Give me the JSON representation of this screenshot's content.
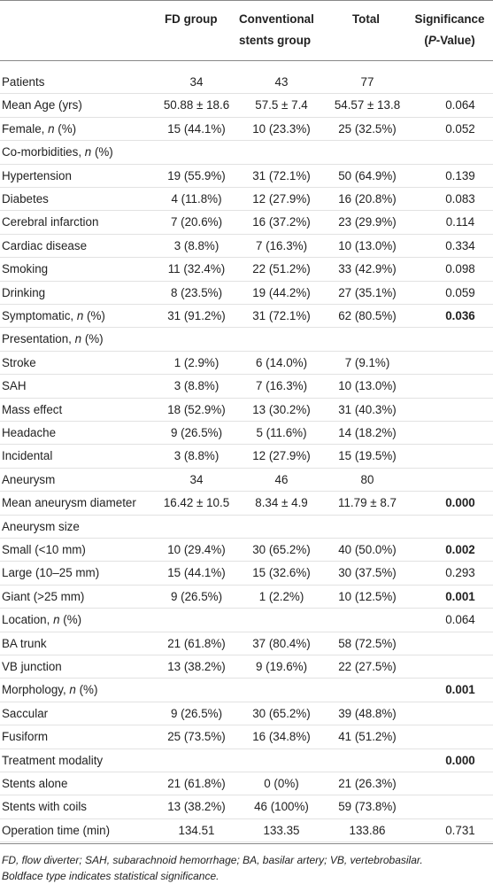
{
  "table": {
    "header": [
      "FD group",
      "Conventional stents group",
      "Total",
      "Significance (P-Value)"
    ],
    "rows": [
      [
        "Patients",
        "34",
        "43",
        "77",
        null
      ],
      [
        "Mean Age (yrs)",
        "50.88 ± 18.6",
        "57.5 ± 7.4",
        "54.57 ± 13.8",
        "0.064"
      ],
      [
        "Female, n (%)",
        "15 (44.1%)",
        "10 (23.3%)",
        "25 (32.5%)",
        "0.052"
      ],
      [
        "Co-morbidities, n (%)",
        null,
        null,
        null,
        null
      ],
      [
        "Hypertension",
        "19 (55.9%)",
        "31 (72.1%)",
        "50 (64.9%)",
        "0.139"
      ],
      [
        "Diabetes",
        "4 (11.8%)",
        "12 (27.9%)",
        "16 (20.8%)",
        "0.083"
      ],
      [
        "Cerebral infarction",
        "7 (20.6%)",
        "16 (37.2%)",
        "23 (29.9%)",
        "0.114"
      ],
      [
        "Cardiac disease",
        "3 (8.8%)",
        "7 (16.3%)",
        "10 (13.0%)",
        "0.334"
      ],
      [
        "Smoking",
        "11 (32.4%)",
        "22 (51.2%)",
        "33 (42.9%)",
        "0.098"
      ],
      [
        "Drinking",
        "8 (23.5%)",
        "19 (44.2%)",
        "27 (35.1%)",
        "0.059"
      ],
      [
        "Symptomatic, n (%)",
        "31 (91.2%)",
        "31 (72.1%)",
        "62 (80.5%)",
        "0.036"
      ],
      [
        "Presentation, n (%)",
        null,
        null,
        null,
        null
      ],
      [
        "Stroke",
        "1 (2.9%)",
        "6 (14.0%)",
        "7 (9.1%)",
        null
      ],
      [
        "SAH",
        "3 (8.8%)",
        "7 (16.3%)",
        "10 (13.0%)",
        null
      ],
      [
        "Mass effect",
        "18 (52.9%)",
        "13 (30.2%)",
        "31 (40.3%)",
        null
      ],
      [
        "Headache",
        "9 (26.5%)",
        "5 (11.6%)",
        "14 (18.2%)",
        null
      ],
      [
        "Incidental",
        "3 (8.8%)",
        "12 (27.9%)",
        "15 (19.5%)",
        null
      ],
      [
        "Aneurysm",
        "34",
        "46",
        "80",
        null
      ],
      [
        "Mean aneurysm diameter",
        "16.42 ± 10.5",
        "8.34 ± 4.9",
        "11.79 ± 8.7",
        "0.000"
      ],
      [
        "Aneurysm size",
        null,
        null,
        null,
        null
      ],
      [
        "Small (<10 mm)",
        "10 (29.4%)",
        "30 (65.2%)",
        "40 (50.0%)",
        "0.002"
      ],
      [
        "Large (10–25 mm)",
        "15 (44.1%)",
        "15 (32.6%)",
        "30 (37.5%)",
        "0.293"
      ],
      [
        "Giant (>25 mm)",
        "9 (26.5%)",
        "1 (2.2%)",
        "10 (12.5%)",
        "0.001"
      ],
      [
        "Location, n (%)",
        null,
        null,
        null,
        "0.064"
      ],
      [
        "BA trunk",
        "21 (61.8%)",
        "37 (80.4%)",
        "58 (72.5%)",
        null
      ],
      [
        "VB junction",
        "13 (38.2%)",
        "9 (19.6%)",
        "22 (27.5%)",
        null
      ],
      [
        "Morphology, n (%)",
        null,
        null,
        null,
        "0.001"
      ],
      [
        "Saccular",
        "9 (26.5%)",
        "30 (65.2%)",
        "39 (48.8%)",
        null
      ],
      [
        "Fusiform",
        "25 (73.5%)",
        "16 (34.8%)",
        "41 (51.2%)",
        null
      ],
      [
        "Treatment modality",
        null,
        null,
        null,
        "0.000"
      ],
      [
        "Stents alone",
        "21 (61.8%)",
        "0 (0%)",
        "21 (26.3%)",
        null
      ],
      [
        "Stents with coils",
        "13 (38.2%)",
        "46 (100%)",
        "59 (73.8%)",
        null
      ],
      [
        "Operation time (min)",
        "134.51",
        "133.35",
        "133.86",
        "0.731"
      ]
    ],
    "bold_rows": [
      10,
      18,
      20,
      22,
      26,
      29
    ],
    "footnotes": [
      "FD, flow diverter; SAH, subarachnoid hemorrhage; BA, basilar artery; VB, vertebrobasilar.",
      "Boldface type indicates statistical significance."
    ]
  }
}
